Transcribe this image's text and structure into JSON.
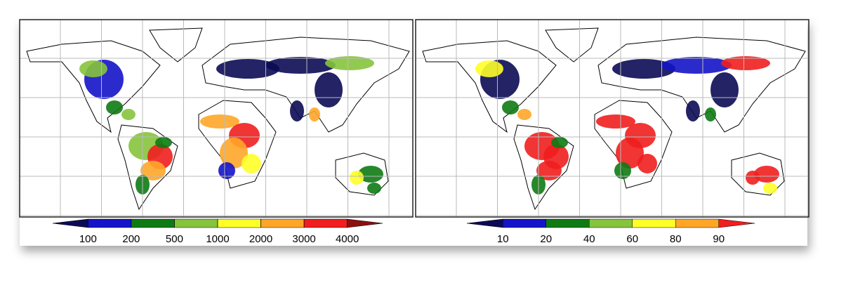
{
  "maps": [
    {
      "colorbar": {
        "colors": [
          "#0b0b55",
          "#1414c8",
          "#0f7a14",
          "#86c43c",
          "#ffff28",
          "#ffa628",
          "#f01e1e",
          "#8c1010"
        ],
        "ticks": [
          100,
          200,
          500,
          1000,
          2000,
          3000,
          4000
        ]
      }
    },
    {
      "colorbar": {
        "colors": [
          "#0b0b55",
          "#1414c8",
          "#0f7a14",
          "#86c43c",
          "#ffff28",
          "#ffa628",
          "#f01e1e"
        ],
        "ticks": [
          10,
          20,
          40,
          60,
          80,
          90
        ]
      }
    }
  ]
}
